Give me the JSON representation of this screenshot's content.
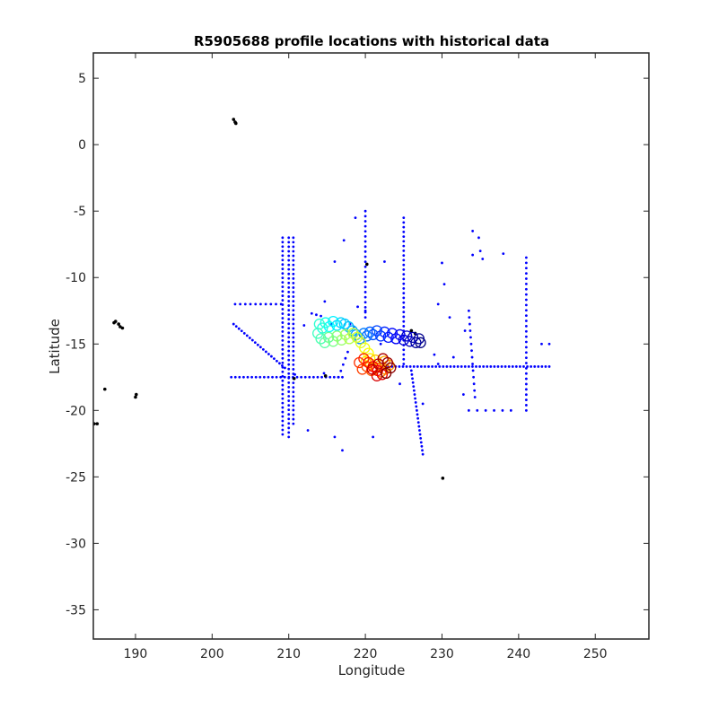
{
  "chart_data": {
    "type": "scatter",
    "title": "R5905688 profile locations with historical data",
    "xlabel": "Longitude",
    "ylabel": "Latitude",
    "xlim": [
      184.5,
      257
    ],
    "ylim": [
      -37.2,
      6.9
    ],
    "xticks": [
      190,
      200,
      210,
      220,
      230,
      240,
      250
    ],
    "yticks": [
      5,
      0,
      -5,
      -10,
      -15,
      -20,
      -25,
      -30,
      -35
    ],
    "grid": false,
    "series": [
      {
        "kind": "historical-ship-points",
        "color": "#0000ff",
        "marker": "dot",
        "segments": [
          {
            "from": [
              209.2,
              -7.0
            ],
            "to": [
              209.2,
              -21.8
            ],
            "n": 45
          },
          {
            "from": [
              210.0,
              -7.0
            ],
            "to": [
              210.0,
              -22.0
            ],
            "n": 45
          },
          {
            "from": [
              210.6,
              -7.0
            ],
            "to": [
              210.6,
              -21.0
            ],
            "n": 42
          },
          {
            "from": [
              202.5,
              -17.5
            ],
            "to": [
              217.0,
              -17.5
            ],
            "n": 28
          },
          {
            "from": [
              202.8,
              -13.5
            ],
            "to": [
              209.5,
              -16.8
            ],
            "n": 20
          },
          {
            "from": [
              203.0,
              -12.0
            ],
            "to": [
              209.0,
              -12.0
            ],
            "n": 10
          },
          {
            "from": [
              225.0,
              -5.5
            ],
            "to": [
              225.0,
              -16.5
            ],
            "n": 32
          },
          {
            "from": [
              226.0,
              -17.0
            ],
            "to": [
              227.5,
              -23.3
            ],
            "n": 22
          },
          {
            "from": [
              223.0,
              -16.7
            ],
            "to": [
              244.0,
              -16.7
            ],
            "n": 45
          },
          {
            "from": [
              241.0,
              -8.5
            ],
            "to": [
              241.0,
              -20.0
            ],
            "n": 30
          },
          {
            "from": [
              220.0,
              -5.0
            ],
            "to": [
              220.0,
              -13.0
            ],
            "n": 22
          },
          {
            "from": [
              216.5,
              -17.5
            ],
            "to": [
              217.7,
              -15.6
            ],
            "n": 5
          },
          {
            "from": [
              233.5,
              -12.5
            ],
            "to": [
              234.3,
              -19.0
            ],
            "n": 14
          },
          {
            "from": [
              233.5,
              -20.0
            ],
            "to": [
              239.0,
              -20.0
            ],
            "n": 6
          }
        ],
        "points": [
          [
            212.0,
            -13.6
          ],
          [
            213.6,
            -12.8
          ],
          [
            213.0,
            -12.7
          ],
          [
            214.2,
            -12.9
          ],
          [
            215.5,
            -13.5
          ],
          [
            218.5,
            -13.7
          ],
          [
            218.0,
            -13.5
          ],
          [
            217.2,
            -7.2
          ],
          [
            218.7,
            -5.5
          ],
          [
            216.0,
            -8.8
          ],
          [
            219.0,
            -12.2
          ],
          [
            220.0,
            -12.5
          ],
          [
            214.7,
            -11.8
          ],
          [
            214.6,
            -17.2
          ],
          [
            216.0,
            -22.0
          ],
          [
            217.0,
            -23.0
          ],
          [
            212.5,
            -21.5
          ],
          [
            210.8,
            -17.3
          ],
          [
            221.0,
            -22.0
          ],
          [
            222.5,
            -8.8
          ],
          [
            224.5,
            -18.0
          ],
          [
            227.5,
            -19.5
          ],
          [
            229.5,
            -16.5
          ],
          [
            230.0,
            -8.9
          ],
          [
            230.3,
            -10.5
          ],
          [
            229.5,
            -12.0
          ],
          [
            229.0,
            -15.8
          ],
          [
            231.0,
            -13.0
          ],
          [
            231.5,
            -16.0
          ],
          [
            234.0,
            -6.5
          ],
          [
            234.8,
            -7.0
          ],
          [
            234.0,
            -8.3
          ],
          [
            235.0,
            -8.0
          ],
          [
            235.3,
            -8.6
          ],
          [
            238.0,
            -8.2
          ],
          [
            243.0,
            -15.0
          ],
          [
            244.0,
            -15.0
          ],
          [
            233.0,
            -14.0
          ],
          [
            232.8,
            -18.8
          ],
          [
            222.0,
            -15.0
          ]
        ]
      },
      {
        "kind": "historical-argo-points",
        "color": "#000000",
        "marker": "dot",
        "points": [
          [
            202.8,
            1.9
          ],
          [
            203.0,
            1.7
          ],
          [
            203.1,
            1.6
          ],
          [
            187.2,
            -13.4
          ],
          [
            187.4,
            -13.3
          ],
          [
            187.8,
            -13.5
          ],
          [
            188.0,
            -13.7
          ],
          [
            188.3,
            -13.8
          ],
          [
            186.0,
            -18.4
          ],
          [
            190.1,
            -18.8
          ],
          [
            190.0,
            -19.0
          ],
          [
            184.6,
            -21.0
          ],
          [
            185.0,
            -21.0
          ],
          [
            220.2,
            -9.0
          ],
          [
            230.1,
            -25.1
          ],
          [
            210.7,
            -17.6
          ],
          [
            214.8,
            -17.4
          ],
          [
            226.0,
            -14.0
          ],
          [
            226.5,
            -14.2
          ]
        ]
      },
      {
        "kind": "float-profiles",
        "marker": "circle",
        "colormap": "jet",
        "points": [
          [
            227.2,
            -14.9
          ],
          [
            227.0,
            -14.6
          ],
          [
            226.6,
            -14.9
          ],
          [
            226.2,
            -14.5
          ],
          [
            225.8,
            -14.8
          ],
          [
            225.4,
            -14.4
          ],
          [
            225.0,
            -14.7
          ],
          [
            224.5,
            -14.3
          ],
          [
            224.0,
            -14.6
          ],
          [
            223.5,
            -14.2
          ],
          [
            223.0,
            -14.5
          ],
          [
            222.5,
            -14.1
          ],
          [
            222.0,
            -14.4
          ],
          [
            221.5,
            -14.0
          ],
          [
            221.0,
            -14.3
          ],
          [
            220.6,
            -14.1
          ],
          [
            220.2,
            -14.4
          ],
          [
            219.8,
            -14.2
          ],
          [
            219.3,
            -14.6
          ],
          [
            218.8,
            -14.3
          ],
          [
            218.3,
            -14.0
          ],
          [
            217.8,
            -13.7
          ],
          [
            217.3,
            -13.5
          ],
          [
            216.8,
            -13.4
          ],
          [
            216.3,
            -13.6
          ],
          [
            215.8,
            -13.3
          ],
          [
            215.3,
            -13.7
          ],
          [
            214.8,
            -13.4
          ],
          [
            214.4,
            -13.8
          ],
          [
            214.0,
            -13.5
          ],
          [
            213.8,
            -14.2
          ],
          [
            214.2,
            -14.6
          ],
          [
            214.7,
            -14.9
          ],
          [
            215.2,
            -14.5
          ],
          [
            215.8,
            -14.8
          ],
          [
            216.3,
            -14.4
          ],
          [
            216.9,
            -14.7
          ],
          [
            217.4,
            -14.3
          ],
          [
            217.9,
            -14.6
          ],
          [
            218.4,
            -14.2
          ],
          [
            218.9,
            -14.5
          ],
          [
            219.4,
            -14.9
          ],
          [
            219.9,
            -15.3
          ],
          [
            220.4,
            -15.7
          ],
          [
            220.6,
            -16.1
          ],
          [
            220.1,
            -16.3
          ],
          [
            220.7,
            -16.5
          ],
          [
            221.3,
            -16.2
          ],
          [
            221.9,
            -16.6
          ],
          [
            222.5,
            -16.3
          ],
          [
            223.1,
            -16.6
          ],
          [
            222.6,
            -16.9
          ],
          [
            222.0,
            -17.1
          ],
          [
            221.4,
            -16.8
          ],
          [
            220.8,
            -17.0
          ],
          [
            220.2,
            -16.7
          ],
          [
            219.6,
            -16.9
          ],
          [
            219.2,
            -16.4
          ],
          [
            219.8,
            -16.1
          ],
          [
            220.4,
            -16.4
          ],
          [
            221.0,
            -16.7
          ],
          [
            221.6,
            -17.0
          ],
          [
            222.2,
            -17.3
          ],
          [
            221.5,
            -17.4
          ],
          [
            220.9,
            -16.9
          ],
          [
            221.7,
            -16.5
          ],
          [
            222.3,
            -16.1
          ],
          [
            222.9,
            -16.4
          ],
          [
            223.3,
            -16.8
          ],
          [
            222.7,
            -17.2
          ]
        ]
      }
    ]
  }
}
